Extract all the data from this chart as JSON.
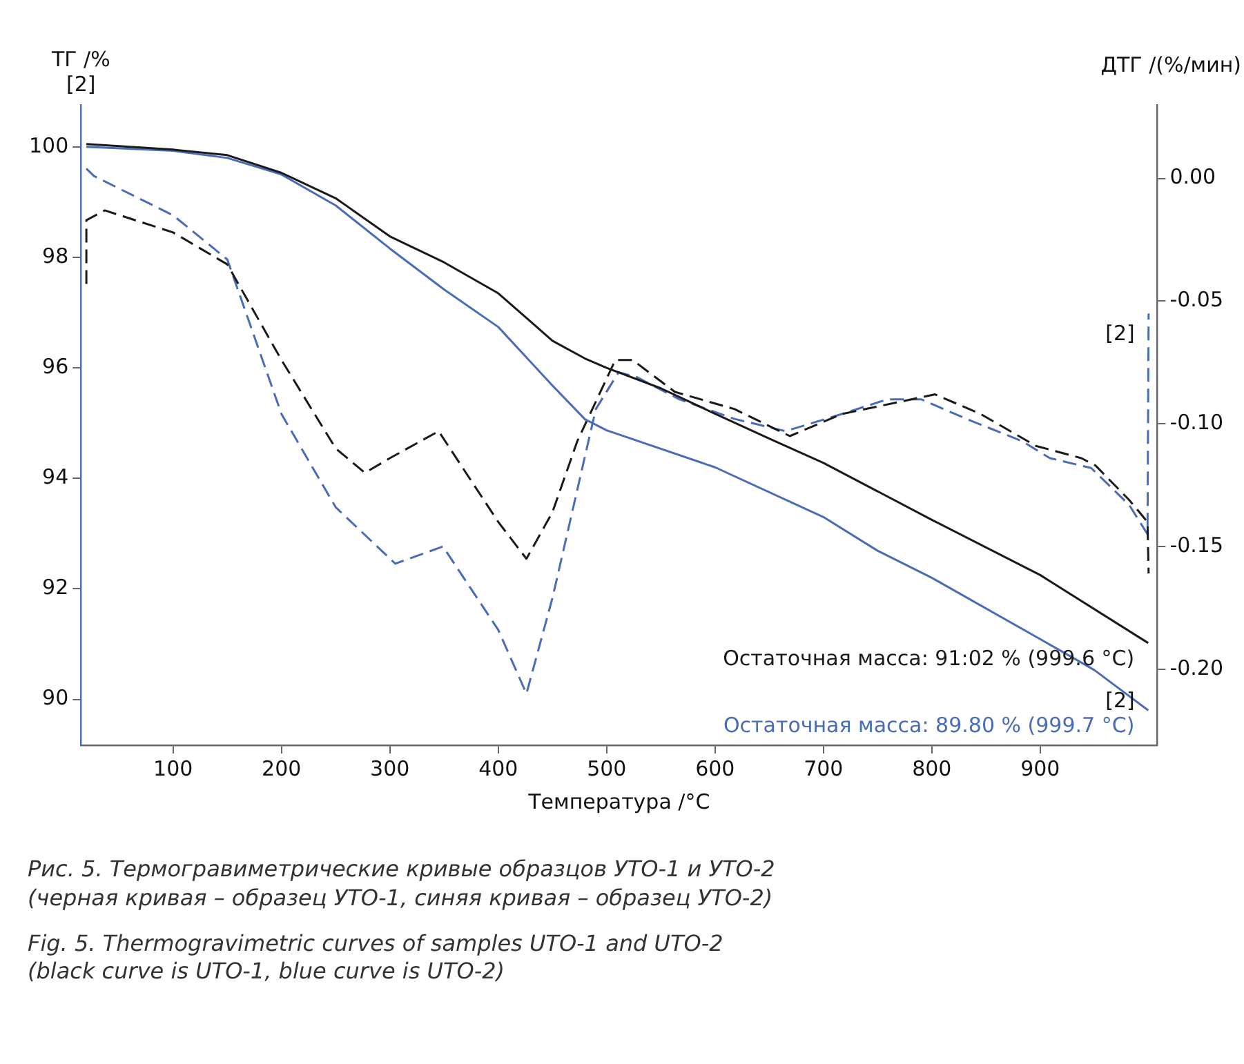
{
  "chart_data": {
    "type": "line",
    "xlabel": "Температура /°C",
    "ylabel": "ТГ /%\n[2]",
    "y2label": "ДТГ /(%/мин)",
    "xlim": [
      15,
      1008
    ],
    "xticks": [
      100,
      200,
      300,
      400,
      500,
      600,
      700,
      800,
      900
    ],
    "ylim": [
      89.17,
      100.76
    ],
    "yticks": [
      90,
      92,
      94,
      96,
      98,
      100
    ],
    "y2lim": [
      -0.231,
      0.03
    ],
    "y2ticks": [
      {
        "value": 0,
        "label": "0.00"
      },
      {
        "value": -0.05,
        "label": "-0.05"
      },
      {
        "value": -0.1,
        "label": "-0.10"
      },
      {
        "value": -0.15,
        "label": "-0.15"
      },
      {
        "value": -0.2,
        "label": "-0.20"
      }
    ],
    "grid": false,
    "legend": false,
    "marker": "none",
    "series": [
      {
        "color": "#1a1a1a",
        "line_style": "solid",
        "x": [
          20,
          100,
          150,
          200,
          250,
          300,
          350,
          400,
          450,
          480,
          500,
          550,
          600,
          650,
          700,
          800,
          900,
          999.6
        ],
        "values": [
          100.05,
          99.95,
          99.85,
          99.53,
          99.07,
          98.38,
          97.91,
          97.35,
          96.49,
          96.17,
          96.0,
          95.63,
          95.17,
          94.72,
          94.28,
          93.25,
          92.25,
          91.02
        ]
      },
      {
        "color": "#4a6cb8",
        "line_style": "solid",
        "x": [
          20,
          100,
          150,
          200,
          250,
          300,
          350,
          400,
          450,
          480,
          500,
          600,
          700,
          750,
          800,
          900,
          950,
          999.7
        ],
        "values": [
          100.0,
          99.93,
          99.8,
          99.5,
          98.94,
          98.16,
          97.42,
          96.74,
          95.68,
          95.07,
          94.87,
          94.2,
          93.3,
          92.69,
          92.2,
          91.09,
          90.53,
          89.8
        ]
      },
      {
        "color": "#1a1a1a",
        "line_style": "dashed",
        "axis": "y2",
        "x": [
          20,
          20,
          37,
          100,
          150,
          200,
          250,
          277,
          300,
          345,
          400,
          426,
          450,
          473,
          508,
          524,
          563,
          618,
          669,
          717,
          803,
          845,
          896,
          938,
          951,
          982,
          999,
          1000
        ],
        "values": [
          -0.043,
          -0.017,
          -0.013,
          -0.022,
          -0.035,
          -0.074,
          -0.11,
          -0.12,
          -0.114,
          -0.103,
          -0.14,
          -0.155,
          -0.136,
          -0.107,
          -0.074,
          -0.074,
          -0.087,
          -0.094,
          -0.105,
          -0.096,
          -0.088,
          -0.096,
          -0.109,
          -0.114,
          -0.117,
          -0.131,
          -0.14,
          -0.161
        ]
      },
      {
        "color": "#4a6cb8",
        "line_style": "dashed",
        "axis": "y2",
        "x": [
          20,
          27,
          100,
          150,
          200,
          250,
          305,
          349,
          400,
          426,
          450,
          490,
          511,
          528,
          567,
          618,
          665,
          717,
          759,
          790,
          832,
          883,
          909,
          947,
          982,
          999,
          1000
        ],
        "values": [
          0.004,
          0.001,
          -0.015,
          -0.033,
          -0.096,
          -0.134,
          -0.157,
          -0.15,
          -0.184,
          -0.21,
          -0.171,
          -0.094,
          -0.079,
          -0.081,
          -0.09,
          -0.098,
          -0.103,
          -0.096,
          -0.09,
          -0.09,
          -0.098,
          -0.107,
          -0.114,
          -0.118,
          -0.133,
          -0.145,
          -0.055
        ]
      }
    ],
    "annotations": [
      {
        "text": "Остаточная масса: 91:02 % (999.6 °C)",
        "x": 999.6,
        "y": 91.02
      },
      {
        "text": "Остаточная масса: 89.80 % (999.7 °C)",
        "x": 999.7,
        "y": 89.8
      },
      {
        "text": "[2]",
        "x": 1000,
        "y": 96.6
      },
      {
        "text": "[2]",
        "x": 1000,
        "y": 89.95
      },
      "Рис. 5. Термогравиметрические кривые образцов УТО-1 и УТО-2\n(черная кривая – образец УТО-1, синяя кривая – образец УТО-2)",
      "Fig. 5. Thermogravimetric curves of samples UTO-1 and UTO-2\n (black curve is UTO-1, blue curve is UTO-2)"
    ]
  }
}
